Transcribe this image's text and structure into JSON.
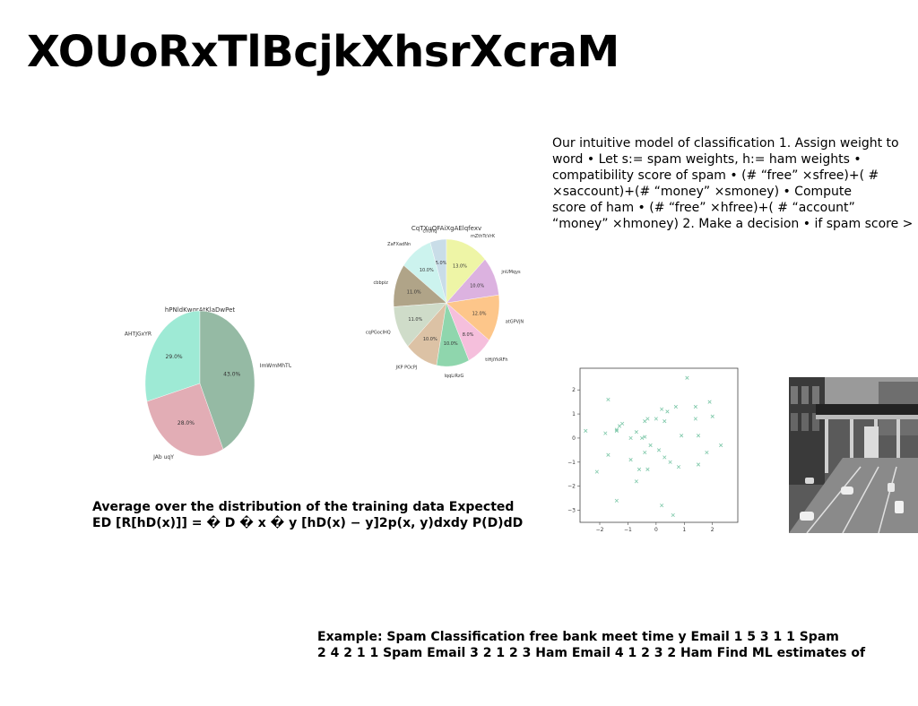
{
  "slide": {
    "title": "XOUoRxTlBcjkXhsrXcraM",
    "paragraph_lines": [
      "Our intuitive model of classification 1. Assign weight to",
      "word • Let s:= spam weights, h:= ham weights •",
      "compatibility score of spam • (# “free” ×sfree)+( #",
      "×saccount)+(# “money” ×smoney) • Compute",
      "score of ham • (# “free” ×hfree)+( # “account”",
      "“money” ×hmoney) 2. Make a decision • if spam score >"
    ],
    "expected_lines": [
      "Average over the distribution of the training data Expected",
      "ED [R[hD(x)]] = � D � x � y [hD(x) − y]2p(x, y)dxdy P(D)dD"
    ],
    "example_lines": [
      "Example: Spam Classification free bank meet time y Email 1 5 3 1 1 Spam",
      "2 4 2 1 1 Spam Email 3 2 1 2 3 Ham Email 4 1 2 3 2 Ham Find ML estimates of"
    ]
  },
  "chart_data": [
    {
      "type": "pie",
      "title": "hPNldKwqrAtKlaDwPet",
      "labels": [
        "AHTJGxYR",
        "JAb uqY",
        "ImWmMhTU"
      ],
      "values": [
        29.0,
        28.0,
        43.0
      ],
      "value_labels": [
        "29.0%",
        "28.0%",
        "43.0%"
      ],
      "colors": [
        "#9eead5",
        "#e2adb5",
        "#95baa4"
      ]
    },
    {
      "type": "pie",
      "title": "CqTXuOFAiXgAElqfexv",
      "labels": [
        "chUhq",
        "ZaFXadNn",
        "cbbpiz",
        "cqPGocIHQ",
        "JKP POcPJ",
        "lqqLiRzG",
        "tiHjiYkRFh",
        "atGPVjN",
        "jnUMqys",
        "mZthTcVrK"
      ],
      "values": [
        5.0,
        10.0,
        11.0,
        11.0,
        10.0,
        10.0,
        8.0,
        12.0,
        10.0,
        13.0
      ],
      "value_labels": [
        "5.0%",
        "10.0%",
        "11.0%",
        "11.0%",
        "10.0%",
        "10.0%",
        "8.0%",
        "12.0%",
        "10.0%",
        "13.0%"
      ],
      "colors": [
        "#c9dde8",
        "#ccf3ee",
        "#b0a488",
        "#cfdcc9",
        "#dcc2a5",
        "#8fd6ad",
        "#f5bfdc",
        "#fdc68a",
        "#dcb2e0",
        "#eef5a6"
      ]
    },
    {
      "type": "scatter",
      "marker": "x",
      "color": "#7cc7a8",
      "xlim": [
        -2.7,
        2.9
      ],
      "ylim": [
        -3.5,
        2.9
      ],
      "xticks": [
        -2,
        -1,
        0,
        1,
        2
      ],
      "yticks": [
        -3,
        -2,
        -1,
        0,
        1,
        2
      ],
      "points": [
        [
          -2.5,
          0.3
        ],
        [
          -2.1,
          -1.4
        ],
        [
          -1.8,
          0.2
        ],
        [
          -1.7,
          1.6
        ],
        [
          -1.7,
          -0.7
        ],
        [
          -1.4,
          0.3
        ],
        [
          -1.4,
          0.35
        ],
        [
          -1.3,
          0.5
        ],
        [
          -1.4,
          -2.6
        ],
        [
          -1.2,
          0.6
        ],
        [
          -0.9,
          0.0
        ],
        [
          -0.9,
          -0.9
        ],
        [
          -0.7,
          -1.8
        ],
        [
          -0.7,
          0.25
        ],
        [
          -0.6,
          -1.3
        ],
        [
          -0.5,
          0.0
        ],
        [
          -0.4,
          0.05
        ],
        [
          -0.4,
          0.7
        ],
        [
          -0.4,
          -0.6
        ],
        [
          -0.3,
          0.8
        ],
        [
          -0.3,
          -1.3
        ],
        [
          -0.2,
          -0.3
        ],
        [
          0.0,
          0.8
        ],
        [
          0.1,
          -0.5
        ],
        [
          0.2,
          -2.8
        ],
        [
          0.2,
          1.2
        ],
        [
          0.3,
          0.7
        ],
        [
          0.3,
          -0.8
        ],
        [
          0.4,
          1.1
        ],
        [
          0.5,
          -1.0
        ],
        [
          0.6,
          -3.2
        ],
        [
          0.7,
          1.3
        ],
        [
          0.8,
          -1.2
        ],
        [
          0.9,
          0.1
        ],
        [
          1.1,
          2.5
        ],
        [
          1.4,
          1.3
        ],
        [
          1.4,
          0.8
        ],
        [
          1.5,
          0.1
        ],
        [
          1.5,
          -1.1
        ],
        [
          1.8,
          -0.6
        ],
        [
          1.9,
          1.5
        ],
        [
          2.0,
          0.9
        ],
        [
          2.3,
          -0.3
        ]
      ]
    }
  ]
}
